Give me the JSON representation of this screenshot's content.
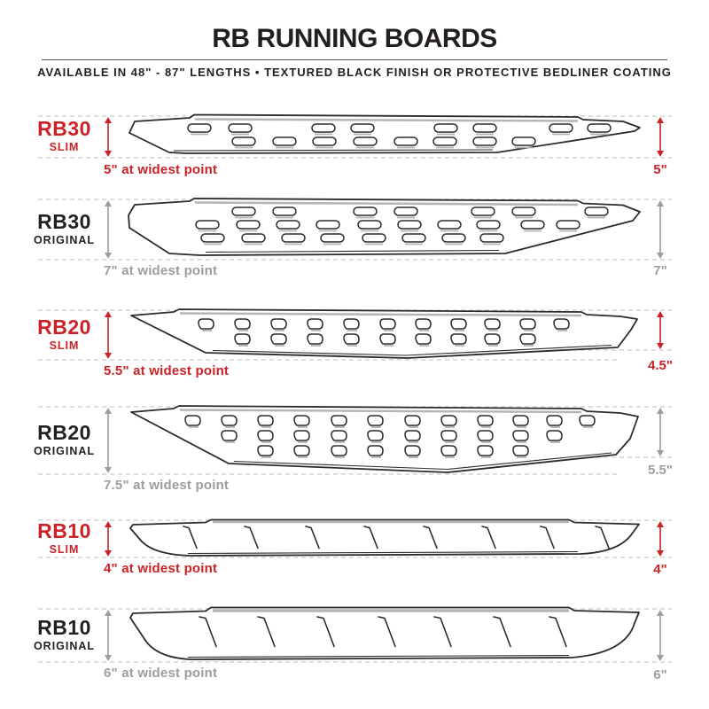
{
  "header": {
    "title": "RB RUNNING BOARDS",
    "subtitle": "AVAILABLE IN 48\" - 87\" LENGTHS  •  TEXTURED BLACK FINISH OR PROTECTIVE BEDLINER COATING"
  },
  "colors": {
    "accent_red": "#cb2127",
    "muted_gray": "#9d9d9d",
    "text_black": "#231f20",
    "dash_gray": "#c9c9c9",
    "line_gray": "#55565a",
    "board_stroke": "#2b2b2b",
    "shadow_gray": "#b5b5b5"
  },
  "rows": [
    {
      "model": "RB30",
      "variant": "SLIM",
      "caption": "5\" at widest point",
      "right_measure": "5\"",
      "theme": "slim"
    },
    {
      "model": "RB30",
      "variant": "ORIGINAL",
      "caption": "7\" at widest point",
      "right_measure": "7\"",
      "theme": "original"
    },
    {
      "model": "RB20",
      "variant": "SLIM",
      "caption": "5.5\" at widest point",
      "right_measure": "4.5\"",
      "theme": "slim"
    },
    {
      "model": "RB20",
      "variant": "ORIGINAL",
      "caption": "7.5\" at widest point",
      "right_measure": "5.5\"",
      "theme": "original"
    },
    {
      "model": "RB10",
      "variant": "SLIM",
      "caption": "4\" at widest point",
      "right_measure": "4\"",
      "theme": "slim"
    },
    {
      "model": "RB10",
      "variant": "ORIGINAL",
      "caption": "6\" at widest point",
      "right_measure": "6\"",
      "theme": "original"
    }
  ]
}
